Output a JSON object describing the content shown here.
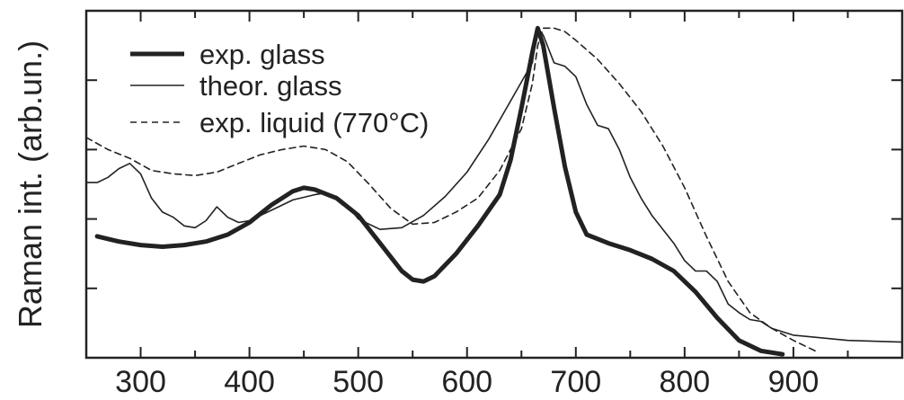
{
  "chart_data": {
    "type": "line",
    "title": "",
    "xlabel": "",
    "ylabel": "Raman int. (arb.un.)",
    "xlim": [
      250,
      1000
    ],
    "ylim": [
      0,
      1
    ],
    "x_ticks": [
      300,
      400,
      500,
      600,
      700,
      800,
      900
    ],
    "grid": false,
    "legend_position": "top-left",
    "series": [
      {
        "name": "exp. glass",
        "style": "thick-solid",
        "color": "#222222",
        "x": [
          260,
          280,
          300,
          320,
          340,
          360,
          380,
          400,
          420,
          440,
          450,
          460,
          480,
          500,
          520,
          540,
          550,
          560,
          570,
          590,
          610,
          630,
          640,
          650,
          660,
          665,
          670,
          680,
          690,
          700,
          710,
          730,
          750,
          770,
          790,
          810,
          830,
          850,
          870,
          890
        ],
        "y": [
          0.35,
          0.335,
          0.325,
          0.32,
          0.325,
          0.335,
          0.355,
          0.39,
          0.44,
          0.48,
          0.49,
          0.485,
          0.46,
          0.41,
          0.33,
          0.25,
          0.225,
          0.22,
          0.235,
          0.3,
          0.38,
          0.47,
          0.57,
          0.72,
          0.88,
          0.95,
          0.9,
          0.72,
          0.55,
          0.42,
          0.355,
          0.33,
          0.31,
          0.285,
          0.25,
          0.19,
          0.115,
          0.05,
          0.02,
          0.01
        ]
      },
      {
        "name": "theor. glass",
        "style": "thin-solid",
        "color": "#222222",
        "x": [
          250,
          260,
          270,
          280,
          290,
          300,
          310,
          320,
          330,
          340,
          350,
          360,
          370,
          380,
          390,
          400,
          420,
          440,
          460,
          470,
          480,
          490,
          500,
          520,
          540,
          560,
          580,
          600,
          620,
          640,
          660,
          665,
          670,
          680,
          690,
          700,
          710,
          720,
          730,
          740,
          750,
          760,
          770,
          780,
          790,
          800,
          810,
          820,
          830,
          840,
          850,
          860,
          870,
          880,
          900,
          950,
          1000
        ],
        "y": [
          0.505,
          0.505,
          0.52,
          0.545,
          0.56,
          0.53,
          0.46,
          0.42,
          0.405,
          0.38,
          0.375,
          0.395,
          0.435,
          0.405,
          0.39,
          0.395,
          0.425,
          0.455,
          0.47,
          0.475,
          0.465,
          0.44,
          0.4,
          0.37,
          0.375,
          0.41,
          0.465,
          0.535,
          0.63,
          0.74,
          0.85,
          0.95,
          0.93,
          0.85,
          0.84,
          0.81,
          0.73,
          0.67,
          0.66,
          0.6,
          0.52,
          0.46,
          0.41,
          0.37,
          0.33,
          0.28,
          0.25,
          0.25,
          0.22,
          0.155,
          0.13,
          0.11,
          0.105,
          0.085,
          0.065,
          0.05,
          0.045
        ]
      },
      {
        "name": "exp. liquid (770°C)",
        "style": "dashed",
        "color": "#222222",
        "x": [
          250,
          270,
          290,
          310,
          330,
          350,
          370,
          390,
          410,
          430,
          450,
          470,
          490,
          510,
          530,
          550,
          570,
          590,
          610,
          630,
          650,
          660,
          665,
          670,
          680,
          690,
          700,
          720,
          740,
          760,
          780,
          800,
          820,
          840,
          860,
          880,
          900,
          920
        ],
        "y": [
          0.635,
          0.6,
          0.575,
          0.54,
          0.53,
          0.525,
          0.535,
          0.56,
          0.585,
          0.6,
          0.61,
          0.6,
          0.565,
          0.5,
          0.43,
          0.385,
          0.39,
          0.42,
          0.46,
          0.54,
          0.66,
          0.79,
          0.9,
          0.95,
          0.95,
          0.94,
          0.915,
          0.86,
          0.79,
          0.71,
          0.61,
          0.49,
          0.35,
          0.22,
          0.13,
          0.085,
          0.05,
          0.02
        ]
      }
    ]
  }
}
